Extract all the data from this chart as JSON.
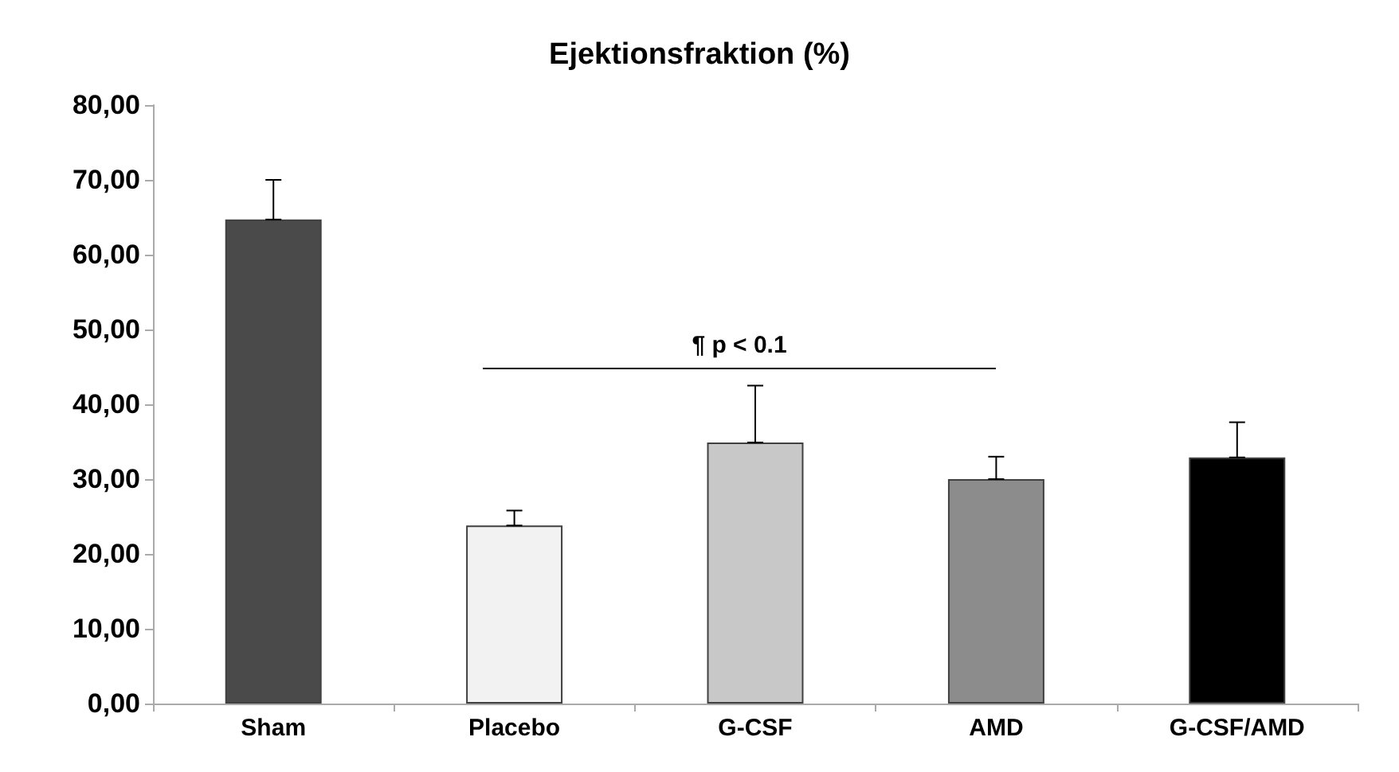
{
  "chart_data": {
    "type": "bar",
    "title": "Ejektionsfraktion (%)",
    "categories": [
      "Sham",
      "Placebo",
      "G-CSF",
      "AMD",
      "G-CSF/AMD"
    ],
    "values": [
      64.7,
      23.8,
      34.9,
      30.0,
      32.9
    ],
    "errors": [
      [
        64.7,
        70.0
      ],
      [
        23.8,
        25.8
      ],
      [
        34.9,
        42.5
      ],
      [
        30.0,
        33.0
      ],
      [
        32.9,
        37.6
      ]
    ],
    "colors": [
      "#4a4a4a",
      "#f2f2f2",
      "#c8c8c8",
      "#8c8c8c",
      "#000000"
    ],
    "ylim": [
      0,
      80
    ],
    "yticks": [
      {
        "value": 0,
        "label": "0,00"
      },
      {
        "value": 10,
        "label": "10,00"
      },
      {
        "value": 20,
        "label": "20,00"
      },
      {
        "value": 30,
        "label": "30,00"
      },
      {
        "value": 40,
        "label": "40,00"
      },
      {
        "value": 50,
        "label": "50,00"
      },
      {
        "value": 60,
        "label": "60,00"
      },
      {
        "value": 70,
        "label": "70,00"
      },
      {
        "value": 80,
        "label": "80,00"
      }
    ],
    "annotations": [
      "¶ p < 0.1"
    ],
    "grid": false
  }
}
